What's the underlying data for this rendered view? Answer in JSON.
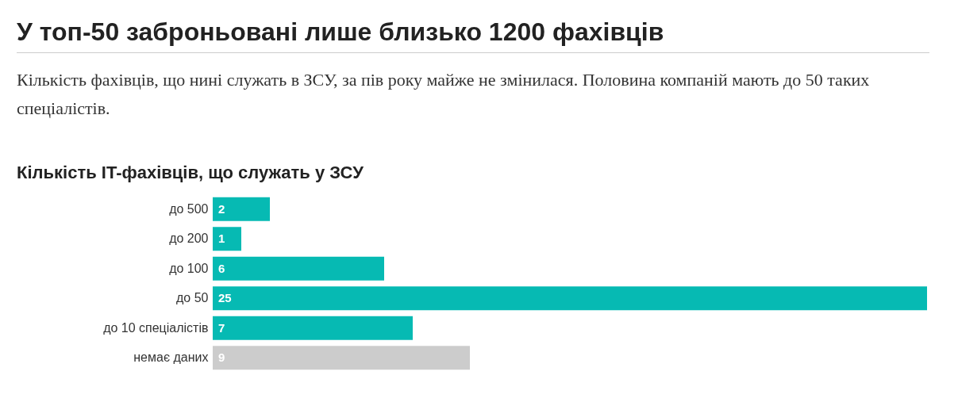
{
  "chart_data": {
    "type": "bar",
    "orientation": "horizontal",
    "title": "У топ-50 заброньовані лише близько 1200 фахівців",
    "subtitle": "Кількість фахівців, що нині служать в ЗСУ, за пів року майже не змінилася. Половина компаній мають до 50 таких спеціалістів.",
    "annotations": [
      "Кількість IT-фахівців, що служать у ЗСУ"
    ],
    "categories": [
      "до 500",
      "до 200",
      "до 100",
      "до 50",
      "до 10 спеціалістів",
      "немає даних"
    ],
    "values": [
      2,
      1,
      6,
      25,
      7,
      9
    ],
    "colors": [
      "#06bab3",
      "#06bab3",
      "#06bab3",
      "#06bab3",
      "#06bab3",
      "#cccccc"
    ],
    "data_labels": true
  }
}
